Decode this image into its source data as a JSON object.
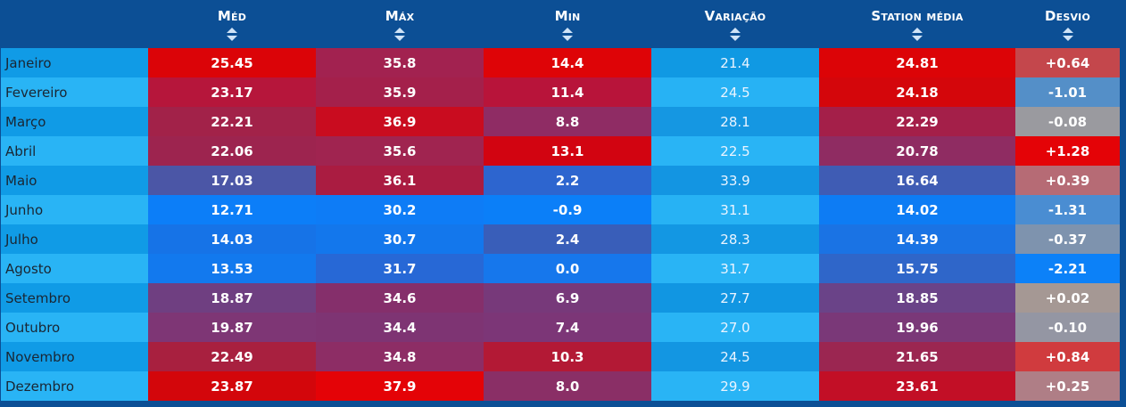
{
  "headers": {
    "month": "",
    "med": "Méd",
    "max": "Máx",
    "min": "Min",
    "variacao": "Variação",
    "station": "Station média",
    "desvio": "Desvio"
  },
  "colors": {
    "header_bg": "#0c4f95",
    "month_odd": "#109be6",
    "month_even": "#29b4f5",
    "hot": "#e00307",
    "cold": "#0c7ef8"
  },
  "rows": [
    {
      "month": "Janeiro",
      "med": "25.45",
      "max": "35.8",
      "min": "14.4",
      "variacao": "21.4",
      "station": "24.81",
      "desvio": "+0.64",
      "c": {
        "med": "#db0408",
        "max": "#a22250",
        "min": "#de0407",
        "var": "#1099e3",
        "station": "#dc0407",
        "desvio": "#c4474c"
      }
    },
    {
      "month": "Fevereiro",
      "med": "23.17",
      "max": "35.9",
      "min": "11.4",
      "variacao": "24.5",
      "station": "24.18",
      "desvio": "-1.01",
      "c": {
        "med": "#b6163b",
        "max": "#a4204b",
        "min": "#b8143a",
        "var": "#27b2f4",
        "station": "#d4060b",
        "desvio": "#548fc8"
      }
    },
    {
      "month": "Março",
      "med": "22.21",
      "max": "36.9",
      "min": "8.8",
      "variacao": "28.1",
      "station": "22.29",
      "desvio": "-0.08",
      "c": {
        "med": "#a22249",
        "max": "#c90c1f",
        "min": "#8f2c64",
        "var": "#1597e2",
        "station": "#a41f49",
        "desvio": "#9a9a9f"
      }
    },
    {
      "month": "Abril",
      "med": "22.06",
      "max": "35.6",
      "min": "13.1",
      "variacao": "22.5",
      "station": "20.78",
      "desvio": "+1.28",
      "c": {
        "med": "#9d244f",
        "max": "#a02450",
        "min": "#d20411",
        "var": "#29b4f5",
        "station": "#8f2c62",
        "desvio": "#e40307"
      }
    },
    {
      "month": "Maio",
      "med": "17.03",
      "max": "36.1",
      "min": "2.2",
      "variacao": "33.9",
      "station": "16.64",
      "desvio": "+0.39",
      "c": {
        "med": "#4b56a6",
        "max": "#aa1c41",
        "min": "#2d65cf",
        "var": "#1395e2",
        "station": "#3f5cb4",
        "desvio": "#b66b75"
      }
    },
    {
      "month": "Junho",
      "med": "12.71",
      "max": "30.2",
      "min": "-0.9",
      "variacao": "31.1",
      "station": "14.02",
      "desvio": "-1.31",
      "c": {
        "med": "#0c7ef8",
        "max": "#0e7cf6",
        "min": "#0b7ff8",
        "var": "#27b2f4",
        "station": "#0d7cf4",
        "desvio": "#4a8dd2"
      }
    },
    {
      "month": "Julho",
      "med": "14.03",
      "max": "30.7",
      "min": "2.4",
      "variacao": "28.3",
      "station": "14.39",
      "desvio": "-0.37",
      "c": {
        "med": "#1673e7",
        "max": "#1377ec",
        "min": "#395eb9",
        "var": "#1397e3",
        "station": "#1a73e4",
        "desvio": "#7e93ae"
      }
    },
    {
      "month": "Agosto",
      "med": "13.53",
      "max": "31.7",
      "min": "0.0",
      "variacao": "31.7",
      "station": "15.75",
      "desvio": "-2.21",
      "c": {
        "med": "#1279ee",
        "max": "#2768d6",
        "min": "#1677ec",
        "var": "#29b4f5",
        "station": "#2f66c9",
        "desvio": "#0c81f8"
      }
    },
    {
      "month": "Setembro",
      "med": "18.87",
      "max": "34.6",
      "min": "6.9",
      "variacao": "27.7",
      "station": "18.85",
      "desvio": "+0.02",
      "c": {
        "med": "#6f3f81",
        "max": "#852f6b",
        "min": "#77397a",
        "var": "#1196e2",
        "station": "#6a4388",
        "desvio": "#a59894"
      }
    },
    {
      "month": "Outubro",
      "med": "19.87",
      "max": "34.4",
      "min": "7.4",
      "variacao": "27.0",
      "station": "19.96",
      "desvio": "-0.10",
      "c": {
        "med": "#7e3675",
        "max": "#7e3473",
        "min": "#7c3677",
        "var": "#29b4f5",
        "station": "#7a3878",
        "desvio": "#9496a3"
      }
    },
    {
      "month": "Novembro",
      "med": "22.49",
      "max": "34.8",
      "min": "10.3",
      "variacao": "24.5",
      "station": "21.65",
      "desvio": "+0.84",
      "c": {
        "med": "#a8203f",
        "max": "#8d2d65",
        "min": "#b31935",
        "var": "#1396e2",
        "station": "#9b2651",
        "desvio": "#d03b3e"
      }
    },
    {
      "month": "Dezembro",
      "med": "23.87",
      "max": "37.9",
      "min": "8.0",
      "variacao": "29.9",
      "station": "23.61",
      "desvio": "+0.25",
      "c": {
        "med": "#d3060b",
        "max": "#e40307",
        "min": "#8a2f66",
        "var": "#29b4f5",
        "station": "#c20f26",
        "desvio": "#af7e86"
      }
    }
  ]
}
